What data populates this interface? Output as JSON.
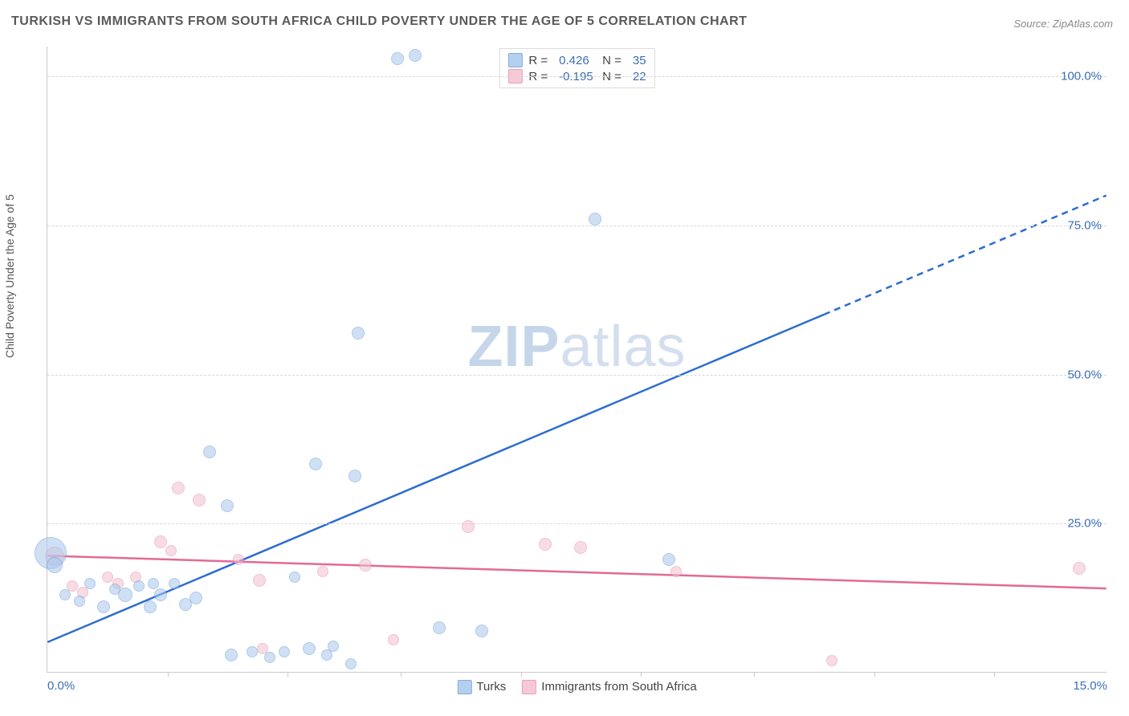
{
  "title": "TURKISH VS IMMIGRANTS FROM SOUTH AFRICA CHILD POVERTY UNDER THE AGE OF 5 CORRELATION CHART",
  "source": "Source: ZipAtlas.com",
  "ylabel": "Child Poverty Under the Age of 5",
  "watermark_a": "ZIP",
  "watermark_b": "atlas",
  "chart": {
    "type": "scatter",
    "xlim": [
      0,
      15
    ],
    "ylim": [
      0,
      105
    ],
    "yticks": [
      {
        "v": 25,
        "label": "25.0%"
      },
      {
        "v": 50,
        "label": "50.0%"
      },
      {
        "v": 75,
        "label": "75.0%"
      },
      {
        "v": 100,
        "label": "100.0%"
      }
    ],
    "xticks_labeled": [
      {
        "v": 0,
        "label": "0.0%"
      },
      {
        "v": 15,
        "label": "15.0%"
      }
    ],
    "xticks_minor": [
      1.7,
      3.4,
      5.0,
      6.7,
      8.4,
      10.0,
      11.7,
      13.4
    ],
    "background_color": "#ffffff",
    "grid_color": "#d8d8d8",
    "series": {
      "turks": {
        "label": "Turks",
        "fill": "#a9c7ec",
        "stroke": "#6f9ed6",
        "fill_opacity": 0.55,
        "trend_color": "#2d6cd1",
        "r_value": "0.426",
        "n_value": "35",
        "trend": {
          "x1": 0,
          "y1": 5,
          "x2_solid": 11.0,
          "y2_solid": 60,
          "x2_dash": 15,
          "y2_dash": 80
        },
        "points": [
          {
            "x": 0.05,
            "y": 20,
            "r": 20
          },
          {
            "x": 0.1,
            "y": 18,
            "r": 10
          },
          {
            "x": 0.25,
            "y": 13,
            "r": 7
          },
          {
            "x": 0.45,
            "y": 12,
            "r": 7
          },
          {
            "x": 0.6,
            "y": 15,
            "r": 7
          },
          {
            "x": 0.8,
            "y": 11,
            "r": 8
          },
          {
            "x": 0.95,
            "y": 14,
            "r": 7
          },
          {
            "x": 1.1,
            "y": 13,
            "r": 9
          },
          {
            "x": 1.3,
            "y": 14.5,
            "r": 7
          },
          {
            "x": 1.45,
            "y": 11,
            "r": 8
          },
          {
            "x": 1.5,
            "y": 15,
            "r": 7
          },
          {
            "x": 1.6,
            "y": 13,
            "r": 8
          },
          {
            "x": 1.8,
            "y": 15,
            "r": 7
          },
          {
            "x": 1.95,
            "y": 11.5,
            "r": 8
          },
          {
            "x": 2.1,
            "y": 12.5,
            "r": 8
          },
          {
            "x": 2.3,
            "y": 37,
            "r": 8
          },
          {
            "x": 2.55,
            "y": 28,
            "r": 8
          },
          {
            "x": 2.6,
            "y": 3,
            "r": 8
          },
          {
            "x": 2.9,
            "y": 3.5,
            "r": 7
          },
          {
            "x": 3.15,
            "y": 2.5,
            "r": 7
          },
          {
            "x": 3.35,
            "y": 3.5,
            "r": 7
          },
          {
            "x": 3.5,
            "y": 16,
            "r": 7
          },
          {
            "x": 3.7,
            "y": 4,
            "r": 8
          },
          {
            "x": 3.8,
            "y": 35,
            "r": 8
          },
          {
            "x": 3.95,
            "y": 3,
            "r": 7
          },
          {
            "x": 4.05,
            "y": 4.5,
            "r": 7
          },
          {
            "x": 4.3,
            "y": 1.5,
            "r": 7
          },
          {
            "x": 4.35,
            "y": 33,
            "r": 8
          },
          {
            "x": 4.4,
            "y": 57,
            "r": 8
          },
          {
            "x": 4.95,
            "y": 103,
            "r": 8
          },
          {
            "x": 5.2,
            "y": 103.5,
            "r": 8
          },
          {
            "x": 5.55,
            "y": 7.5,
            "r": 8
          },
          {
            "x": 6.15,
            "y": 7,
            "r": 8
          },
          {
            "x": 7.75,
            "y": 76,
            "r": 8
          },
          {
            "x": 8.8,
            "y": 19,
            "r": 8
          }
        ]
      },
      "immigrants": {
        "label": "Immigrants from South Africa",
        "fill": "#f4c0cf",
        "stroke": "#e58fb0",
        "fill_opacity": 0.55,
        "trend_color": "#e26a94",
        "r_value": "-0.195",
        "n_value": "22",
        "trend": {
          "x1": 0,
          "y1": 19.5,
          "x2_solid": 15,
          "y2_solid": 14,
          "x2_dash": 15,
          "y2_dash": 14
        },
        "points": [
          {
            "x": 0.1,
            "y": 19.5,
            "r": 12
          },
          {
            "x": 0.35,
            "y": 14.5,
            "r": 7
          },
          {
            "x": 0.5,
            "y": 13.5,
            "r": 7
          },
          {
            "x": 0.85,
            "y": 16,
            "r": 7
          },
          {
            "x": 1.0,
            "y": 15,
            "r": 7
          },
          {
            "x": 1.25,
            "y": 16,
            "r": 7
          },
          {
            "x": 1.6,
            "y": 22,
            "r": 8
          },
          {
            "x": 1.75,
            "y": 20.5,
            "r": 7
          },
          {
            "x": 1.85,
            "y": 31,
            "r": 8
          },
          {
            "x": 2.15,
            "y": 29,
            "r": 8
          },
          {
            "x": 2.7,
            "y": 19,
            "r": 7
          },
          {
            "x": 3.0,
            "y": 15.5,
            "r": 8
          },
          {
            "x": 3.05,
            "y": 4,
            "r": 7
          },
          {
            "x": 3.9,
            "y": 17,
            "r": 7
          },
          {
            "x": 4.5,
            "y": 18,
            "r": 8
          },
          {
            "x": 4.9,
            "y": 5.5,
            "r": 7
          },
          {
            "x": 5.95,
            "y": 24.5,
            "r": 8
          },
          {
            "x": 7.05,
            "y": 21.5,
            "r": 8
          },
          {
            "x": 7.55,
            "y": 21,
            "r": 8
          },
          {
            "x": 8.9,
            "y": 17,
            "r": 7
          },
          {
            "x": 11.1,
            "y": 2,
            "r": 7
          },
          {
            "x": 14.6,
            "y": 17.5,
            "r": 8
          }
        ]
      }
    }
  },
  "stats_labels": {
    "R": "R  =",
    "N": "N  ="
  }
}
